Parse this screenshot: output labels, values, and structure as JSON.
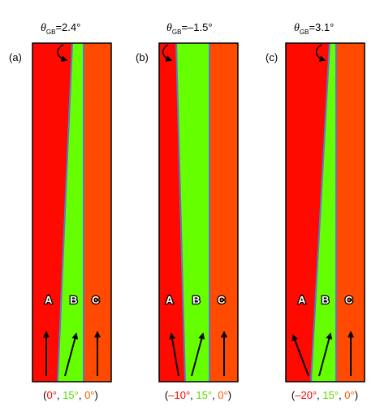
{
  "colors": {
    "grain_A": "#ff0a00",
    "grain_B": "#66ff00",
    "grain_C": "#ff4a00",
    "boundary": "#5a78d0",
    "text": "#000000",
    "angle_red": "#ff0000",
    "angle_green": "#55dd00",
    "angle_orange": "#ff5500"
  },
  "panels": [
    {
      "label": "(a)",
      "theta_symbol": "θ",
      "theta_sub": "GB",
      "theta_value": "=2.4°",
      "grain_labels": [
        "A",
        "B",
        "C"
      ],
      "angle_open": "(",
      "angles": [
        "0°",
        "15°",
        "0°"
      ],
      "angle_sep": ", ",
      "angle_close": ")"
    },
    {
      "label": "(b)",
      "theta_symbol": "θ",
      "theta_sub": "GB",
      "theta_value": "=–1.5°",
      "grain_labels": [
        "A",
        "B",
        "C"
      ],
      "angle_open": "(",
      "angles": [
        "–10°",
        "15°",
        "0°"
      ],
      "angle_sep": ", ",
      "angle_close": ")"
    },
    {
      "label": "(c)",
      "theta_symbol": "θ",
      "theta_sub": "GB",
      "theta_value": "=3.1°",
      "grain_labels": [
        "A",
        "B",
        "C"
      ],
      "angle_open": "(",
      "angles": [
        "–20°",
        "15°",
        "0°"
      ],
      "angle_sep": ", ",
      "angle_close": ")"
    }
  ]
}
